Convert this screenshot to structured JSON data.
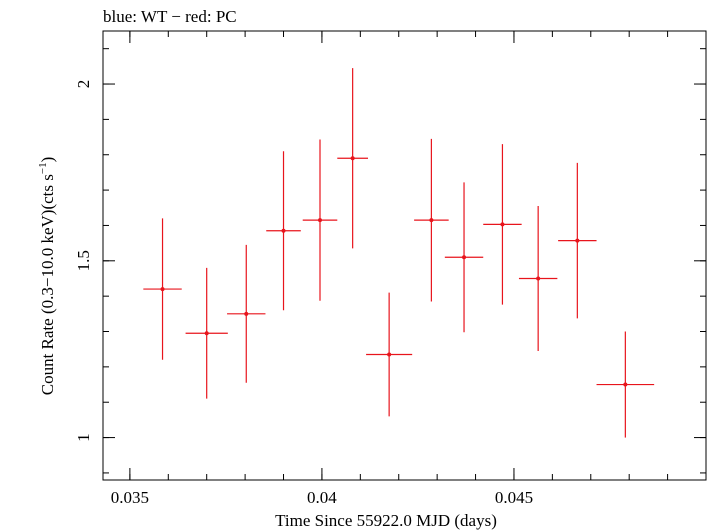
{
  "chart_data": {
    "type": "scatter",
    "title": "blue: WT − red: PC",
    "xlabel": "Time Since 55922.0 MJD (days)",
    "ylabel_main": "Count Rate (0.3−10.0 keV)(cts s",
    "ylabel_sup": "−1",
    "ylabel_close": ")",
    "xlim": [
      0.0343,
      0.05
    ],
    "ylim": [
      0.88,
      2.15
    ],
    "x_ticks": [
      {
        "value": 0.035,
        "label": "0.035"
      },
      {
        "value": 0.04,
        "label": "0.04"
      },
      {
        "value": 0.045,
        "label": "0.045"
      }
    ],
    "x_minor_step": 0.001,
    "y_ticks": [
      {
        "value": 1.0,
        "label": "1"
      },
      {
        "value": 1.5,
        "label": "1.5"
      },
      {
        "value": 2.0,
        "label": "2"
      }
    ],
    "y_minor_step": 0.1,
    "grid": false,
    "series": [
      {
        "color": "#e8141c",
        "points": [
          {
            "x": 0.03585,
            "xerr": 0.0005,
            "y": 1.42,
            "yerr": 0.2
          },
          {
            "x": 0.037,
            "xerr": 0.00055,
            "y": 1.295,
            "yerr": 0.185
          },
          {
            "x": 0.03803,
            "xerr": 0.0005,
            "y": 1.35,
            "yerr": 0.195
          },
          {
            "x": 0.039,
            "xerr": 0.00045,
            "y": 1.585,
            "yerr": 0.225
          },
          {
            "x": 0.03995,
            "xerr": 0.00045,
            "y": 1.615,
            "yerr": 0.228
          },
          {
            "x": 0.0408,
            "xerr": 0.0004,
            "y": 1.79,
            "yerr": 0.255
          },
          {
            "x": 0.04175,
            "xerr": 0.0006,
            "y": 1.235,
            "yerr": 0.175
          },
          {
            "x": 0.04285,
            "xerr": 0.00045,
            "y": 1.615,
            "yerr": 0.23
          },
          {
            "x": 0.0437,
            "xerr": 0.0005,
            "y": 1.51,
            "yerr": 0.212
          },
          {
            "x": 0.0447,
            "xerr": 0.0005,
            "y": 1.603,
            "yerr": 0.227
          },
          {
            "x": 0.04563,
            "xerr": 0.0005,
            "y": 1.45,
            "yerr": 0.205
          },
          {
            "x": 0.04665,
            "xerr": 0.0005,
            "y": 1.557,
            "yerr": 0.22
          },
          {
            "x": 0.0479,
            "xerr": 0.00075,
            "y": 1.15,
            "yerr": 0.15
          }
        ]
      }
    ]
  }
}
